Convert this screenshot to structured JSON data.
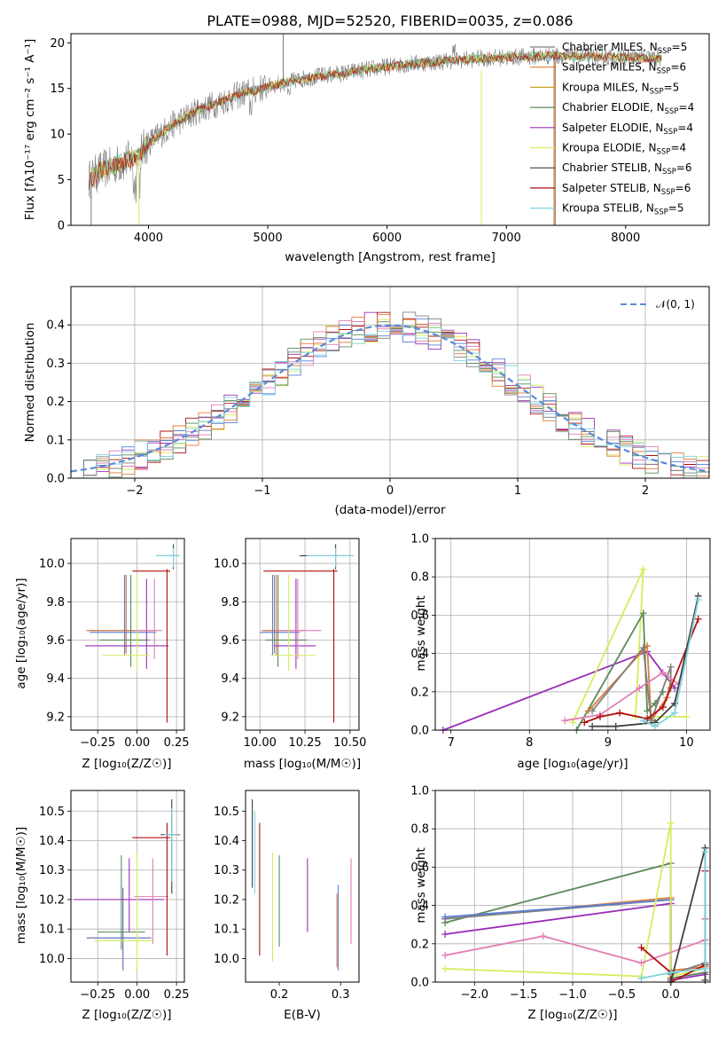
{
  "colors": {
    "chabrier_miles": "#808080",
    "salpeter_miles": "#e07b39",
    "kroupa_miles": "#c9a227",
    "chabrier_elodie": "#5b8a5b",
    "salpeter_elodie": "#9b30b8",
    "kroupa_elodie": "#d6ec5a",
    "chabrier_stelib": "#404040",
    "salpeter_stelib": "#b01010",
    "kroupa_stelib": "#7fd3de",
    "pink": "#e27fb4",
    "blue": "#5a7fd6",
    "normal": "#5b8ad6",
    "grid": "#b0b0b0"
  },
  "chart_data": [
    {
      "id": "spectrum",
      "type": "line",
      "title": "PLATE=0988, MJD=52520, FIBERID=0035, z=0.086",
      "xlabel": "wavelength [Angstrom, rest frame]",
      "ylabel": "Flux [fλ10⁻¹⁷ erg cm⁻² s⁻¹ A⁻¹]",
      "xlim": [
        3350,
        8700
      ],
      "ylim": [
        0,
        21
      ],
      "xticks": [
        "4000",
        "5000",
        "6000",
        "7000",
        "8000"
      ],
      "yticks": [
        "0",
        "5",
        "10",
        "15",
        "20"
      ],
      "grid": false,
      "legend_position": "upper-right",
      "legend": [
        {
          "label": "Chabrier MILES, N",
          "sub": "SSP",
          "tail": "=5"
        },
        {
          "label": "Salpeter MILES, N",
          "sub": "SSP",
          "tail": "=6"
        },
        {
          "label": "Kroupa MILES, N",
          "sub": "SSP",
          "tail": "=5"
        },
        {
          "label": "Chabrier ELODIE, N",
          "sub": "SSP",
          "tail": "=4"
        },
        {
          "label": "Salpeter ELODIE, N",
          "sub": "SSP",
          "tail": "=4"
        },
        {
          "label": "Kroupa ELODIE, N",
          "sub": "SSP",
          "tail": "=4"
        },
        {
          "label": "Chabrier STELIB, N",
          "sub": "SSP",
          "tail": "=6"
        },
        {
          "label": "Salpeter STELIB, N",
          "sub": "SSP",
          "tail": "=6"
        },
        {
          "label": "Kroupa STELIB, N",
          "sub": "SSP",
          "tail": "=5"
        }
      ],
      "continuum": {
        "x": [
          3500,
          3600,
          3700,
          3800,
          3900,
          4000,
          4200,
          4400,
          4600,
          4800,
          5000,
          5200,
          5400,
          5600,
          5800,
          6000,
          6200,
          6400,
          6600,
          6800,
          7000,
          7200,
          7400,
          7600,
          7800,
          8000,
          8200,
          8300
        ],
        "y": [
          5.0,
          6.0,
          6.5,
          7.0,
          7.5,
          9.0,
          11.0,
          12.5,
          13.5,
          14.5,
          15.2,
          15.8,
          16.3,
          16.6,
          17.0,
          17.4,
          17.7,
          17.9,
          18.1,
          18.3,
          18.4,
          18.5,
          18.6,
          18.5,
          18.5,
          18.4,
          18.3,
          18.3
        ]
      }
    },
    {
      "id": "residuals",
      "type": "bar",
      "xlabel": "(data-model)/error",
      "ylabel": "Normed distribution",
      "xlim": [
        -2.5,
        2.5
      ],
      "ylim": [
        0,
        0.5
      ],
      "xticks": [
        "−2",
        "−1",
        "0",
        "1",
        "2"
      ],
      "yticks": [
        "0.0",
        "0.1",
        "0.2",
        "0.3",
        "0.4"
      ],
      "grid": true,
      "legend": "𝒩(0, 1)",
      "legend_position": "upper-right",
      "bin_edges_start": -2.5,
      "bin_width": 0.1
    },
    {
      "id": "age_vs_Z",
      "type": "scatter",
      "xlabel": "Z [log₁₀(Z/Z☉)]",
      "ylabel": "age  [log₁₀(age/yr)]",
      "xlim": [
        -0.42,
        0.3
      ],
      "ylim": [
        9.13,
        10.13
      ],
      "xticks": [
        "−0.25",
        "0.00",
        "0.25"
      ],
      "xtick_values": [
        -0.25,
        0.0,
        0.25
      ],
      "yticks": [
        "9.2",
        "9.4",
        "9.6",
        "9.8",
        "10.0"
      ],
      "ytick_values": [
        9.2,
        9.4,
        9.6,
        9.8,
        10.0
      ],
      "grid": true,
      "points": [
        {
          "x": -0.07,
          "xlo": -0.32,
          "xhi": 0.12,
          "y": 9.65,
          "ylo": 9.53,
          "yhi": 9.94,
          "c": "chabrier_miles"
        },
        {
          "x": -0.07,
          "xlo": -0.32,
          "xhi": 0.12,
          "y": 9.65,
          "ylo": 9.53,
          "yhi": 9.94,
          "c": "salpeter_miles"
        },
        {
          "x": -0.08,
          "xlo": -0.3,
          "xhi": 0.12,
          "y": 9.64,
          "ylo": 9.52,
          "yhi": 9.94,
          "c": "blue"
        },
        {
          "x": -0.04,
          "xlo": -0.24,
          "xhi": 0.08,
          "y": 9.6,
          "ylo": 9.46,
          "yhi": 9.94,
          "c": "chabrier_elodie"
        },
        {
          "x": 0.06,
          "xlo": -0.33,
          "xhi": 0.2,
          "y": 9.57,
          "ylo": 9.45,
          "yhi": 9.92,
          "c": "salpeter_elodie"
        },
        {
          "x": 0.0,
          "xlo": -0.22,
          "xhi": 0.08,
          "y": 9.52,
          "ylo": 9.44,
          "yhi": 9.94,
          "c": "kroupa_elodie"
        },
        {
          "x": 0.11,
          "xlo": -0.02,
          "xhi": 0.16,
          "y": 9.65,
          "ylo": 9.5,
          "yhi": 9.92,
          "c": "pink"
        },
        {
          "x": 0.19,
          "xlo": -0.03,
          "xhi": 0.21,
          "y": 9.96,
          "ylo": 9.17,
          "yhi": 9.97,
          "c": "salpeter_stelib"
        },
        {
          "x": 0.23,
          "xlo": 0.12,
          "xhi": 0.27,
          "y": 10.04,
          "ylo": 9.97,
          "yhi": 10.1,
          "c": "chabrier_stelib"
        },
        {
          "x": 0.23,
          "xlo": 0.12,
          "xhi": 0.27,
          "y": 10.04,
          "ylo": 9.98,
          "yhi": 10.08,
          "c": "kroupa_stelib"
        }
      ]
    },
    {
      "id": "age_vs_mass",
      "type": "scatter",
      "xlabel": "mass [log₁₀(M/M☉)]",
      "ylabel": "",
      "xlim": [
        9.92,
        10.55
      ],
      "ylim": [
        9.13,
        10.13
      ],
      "xticks": [
        "10.00",
        "10.25",
        "10.50"
      ],
      "xtick_values": [
        10.0,
        10.25,
        10.5
      ],
      "yticks": [
        "9.2",
        "9.4",
        "9.6",
        "9.8",
        "10.0"
      ],
      "ytick_values": [
        9.2,
        9.4,
        9.6,
        9.8,
        10.0
      ],
      "grid": true,
      "points": [
        {
          "x": 10.08,
          "xlo": 10.02,
          "xhi": 10.25,
          "y": 9.65,
          "ylo": 9.53,
          "yhi": 9.94,
          "c": "chabrier_miles"
        },
        {
          "x": 10.09,
          "xlo": 10.01,
          "xhi": 10.24,
          "y": 9.65,
          "ylo": 9.52,
          "yhi": 9.94,
          "c": "salpeter_miles"
        },
        {
          "x": 10.07,
          "xlo": 10.0,
          "xhi": 10.22,
          "y": 9.64,
          "ylo": 9.52,
          "yhi": 9.94,
          "c": "blue"
        },
        {
          "x": 10.1,
          "xlo": 10.03,
          "xhi": 10.26,
          "y": 9.6,
          "ylo": 9.46,
          "yhi": 9.94,
          "c": "chabrier_elodie"
        },
        {
          "x": 10.2,
          "xlo": 10.08,
          "xhi": 10.31,
          "y": 9.57,
          "ylo": 9.45,
          "yhi": 9.92,
          "c": "salpeter_elodie"
        },
        {
          "x": 10.16,
          "xlo": 10.06,
          "xhi": 10.31,
          "y": 9.52,
          "ylo": 9.44,
          "yhi": 9.94,
          "c": "kroupa_elodie"
        },
        {
          "x": 10.21,
          "xlo": 10.09,
          "xhi": 10.34,
          "y": 9.65,
          "ylo": 9.5,
          "yhi": 9.92,
          "c": "pink"
        },
        {
          "x": 10.41,
          "xlo": 10.02,
          "xhi": 10.43,
          "y": 9.96,
          "ylo": 9.17,
          "yhi": 9.97,
          "c": "salpeter_stelib"
        },
        {
          "x": 10.42,
          "xlo": 10.22,
          "xhi": 10.52,
          "y": 10.04,
          "ylo": 9.97,
          "yhi": 10.1,
          "c": "chabrier_stelib"
        },
        {
          "x": 10.42,
          "xlo": 10.26,
          "xhi": 10.52,
          "y": 10.04,
          "ylo": 9.98,
          "yhi": 10.08,
          "c": "kroupa_stelib"
        }
      ]
    },
    {
      "id": "weight_vs_age",
      "type": "line",
      "xlabel": "age  [log₁₀(age/yr)]",
      "ylabel": "mass weight",
      "xlim": [
        6.8,
        10.3
      ],
      "ylim": [
        0,
        1.0
      ],
      "xticks": [
        "7",
        "8",
        "9",
        "10"
      ],
      "xtick_values": [
        7,
        8,
        9,
        10
      ],
      "yticks": [
        "0.0",
        "0.2",
        "0.4",
        "0.6",
        "0.8",
        "1.0"
      ],
      "ytick_values": [
        0,
        0.2,
        0.4,
        0.6,
        0.8,
        1.0
      ],
      "grid": true,
      "series": [
        {
          "c": "salpeter_elodie",
          "x": [
            6.9,
            9.5,
            9.7,
            9.85
          ],
          "y": [
            0.0,
            0.41,
            0.3,
            0.22
          ]
        },
        {
          "c": "kroupa_elodie",
          "x": [
            8.55,
            9.45,
            9.35,
            9.55,
            9.55,
            10.0
          ],
          "y": [
            0.04,
            0.84,
            0.07,
            0.06,
            0.07,
            0.07
          ]
        },
        {
          "c": "chabrier_elodie",
          "x": [
            8.6,
            9.45,
            9.5,
            9.6,
            9.7
          ],
          "y": [
            0.0,
            0.61,
            0.1,
            0.14,
            0.2
          ]
        },
        {
          "c": "salpeter_miles",
          "x": [
            8.75,
            9.5,
            9.55,
            9.75,
            9.8
          ],
          "y": [
            0.1,
            0.44,
            0.05,
            0.17,
            0.26
          ]
        },
        {
          "c": "chabrier_miles",
          "x": [
            8.8,
            9.45,
            9.55,
            9.8,
            9.8
          ],
          "y": [
            0.1,
            0.43,
            0.05,
            0.33,
            0.22
          ]
        },
        {
          "c": "pink",
          "x": [
            8.45,
            8.9,
            9.4,
            9.7,
            9.9
          ],
          "y": [
            0.05,
            0.08,
            0.22,
            0.3,
            0.24
          ]
        },
        {
          "c": "salpeter_stelib",
          "x": [
            8.7,
            8.9,
            9.15,
            9.5,
            9.7,
            10.15
          ],
          "y": [
            0.04,
            0.07,
            0.09,
            0.06,
            0.12,
            0.58
          ]
        },
        {
          "c": "chabrier_stelib",
          "x": [
            8.8,
            9.1,
            9.6,
            9.85,
            10.15
          ],
          "y": [
            0.02,
            0.02,
            0.04,
            0.14,
            0.7
          ]
        },
        {
          "c": "kroupa_stelib",
          "x": [
            9.45,
            9.6,
            9.85,
            10.15
          ],
          "y": [
            0.05,
            0.02,
            0.09,
            0.68
          ]
        }
      ]
    },
    {
      "id": "mass_vs_Z",
      "type": "scatter",
      "xlabel": "Z [log₁₀(Z/Z☉)]",
      "ylabel": "mass [log₁₀(M/M☉)]",
      "xlim": [
        -0.42,
        0.3
      ],
      "ylim": [
        9.92,
        10.57
      ],
      "xticks": [
        "−0.25",
        "0.00",
        "0.25"
      ],
      "xtick_values": [
        -0.25,
        0.0,
        0.25
      ],
      "yticks": [
        "10.0",
        "10.1",
        "10.2",
        "10.3",
        "10.4",
        "10.5"
      ],
      "ytick_values": [
        10.0,
        10.1,
        10.2,
        10.3,
        10.4,
        10.5
      ],
      "grid": true,
      "points": [
        {
          "x": -0.09,
          "xlo": -0.32,
          "xhi": 0.09,
          "y": 10.07,
          "ylo": 9.96,
          "yhi": 10.24,
          "c": "salpeter_miles"
        },
        {
          "x": -0.09,
          "xlo": -0.32,
          "xhi": 0.09,
          "y": 10.07,
          "ylo": 9.96,
          "yhi": 10.24,
          "c": "blue"
        },
        {
          "x": -0.1,
          "xlo": -0.25,
          "xhi": 0.05,
          "y": 10.09,
          "ylo": 10.03,
          "yhi": 10.35,
          "c": "chabrier_elodie"
        },
        {
          "x": -0.05,
          "xlo": -0.4,
          "xhi": 0.17,
          "y": 10.2,
          "ylo": 10.09,
          "yhi": 10.34,
          "c": "salpeter_elodie"
        },
        {
          "x": 0.0,
          "xlo": -0.27,
          "xhi": 0.1,
          "y": 10.06,
          "ylo": 9.96,
          "yhi": 10.36,
          "c": "kroupa_elodie"
        },
        {
          "x": 0.1,
          "xlo": -0.02,
          "xhi": 0.2,
          "y": 10.21,
          "ylo": 10.05,
          "yhi": 10.34,
          "c": "pink"
        },
        {
          "x": 0.19,
          "xlo": -0.03,
          "xhi": 0.21,
          "y": 10.41,
          "ylo": 10.01,
          "yhi": 10.46,
          "c": "salpeter_stelib"
        },
        {
          "x": 0.22,
          "xlo": 0.15,
          "xhi": 0.27,
          "y": 10.42,
          "ylo": 10.22,
          "yhi": 10.54,
          "c": "chabrier_stelib"
        },
        {
          "x": 0.22,
          "xlo": 0.17,
          "xhi": 0.26,
          "y": 10.42,
          "ylo": 10.26,
          "yhi": 10.51,
          "c": "kroupa_stelib"
        }
      ]
    },
    {
      "id": "mass_vs_ebv",
      "type": "scatter",
      "xlabel": "E(B-V)",
      "ylabel": "",
      "xlim": [
        0.145,
        0.33
      ],
      "ylim": [
        9.92,
        10.57
      ],
      "xticks": [
        "0.2",
        "0.3"
      ],
      "xtick_values": [
        0.2,
        0.3
      ],
      "yticks": [
        "10.0",
        "10.1",
        "10.2",
        "10.3",
        "10.4",
        "10.5"
      ],
      "ytick_values": [
        10.0,
        10.1,
        10.2,
        10.3,
        10.4,
        10.5
      ],
      "grid": false,
      "points": [
        {
          "x": 0.156,
          "y": 10.38,
          "ylo": 10.24,
          "yhi": 10.54,
          "c": "chabrier_stelib"
        },
        {
          "x": 0.16,
          "y": 10.36,
          "ylo": 10.22,
          "yhi": 10.5,
          "c": "kroupa_stelib"
        },
        {
          "x": 0.168,
          "y": 10.24,
          "ylo": 10.01,
          "yhi": 10.46,
          "c": "salpeter_stelib"
        },
        {
          "x": 0.189,
          "y": 10.18,
          "ylo": 9.99,
          "yhi": 10.36,
          "c": "kroupa_elodie"
        },
        {
          "x": 0.2,
          "y": 10.2,
          "ylo": 10.04,
          "yhi": 10.35,
          "c": "chabrier_elodie"
        },
        {
          "x": 0.246,
          "y": 10.21,
          "ylo": 10.09,
          "yhi": 10.34,
          "c": "salpeter_elodie"
        },
        {
          "x": 0.294,
          "y": 10.09,
          "ylo": 9.97,
          "yhi": 10.22,
          "c": "salpeter_miles"
        },
        {
          "x": 0.296,
          "y": 10.1,
          "ylo": 9.96,
          "yhi": 10.25,
          "c": "blue"
        },
        {
          "x": 0.317,
          "y": 10.2,
          "ylo": 10.05,
          "yhi": 10.34,
          "c": "pink"
        }
      ]
    },
    {
      "id": "weight_vs_Z",
      "type": "line",
      "xlabel": "Z [log₁₀(Z/Z☉)]",
      "ylabel": "mass weight",
      "xlim": [
        -2.4,
        0.4
      ],
      "ylim": [
        0,
        1.0
      ],
      "xticks": [
        "−2.0",
        "−1.5",
        "−1.0",
        "−0.5",
        "0.0"
      ],
      "xtick_values": [
        -2.0,
        -1.5,
        -1.0,
        -0.5,
        0.0
      ],
      "yticks": [
        "0.0",
        "0.2",
        "0.4",
        "0.6",
        "0.8",
        "1.0"
      ],
      "ytick_values": [
        0,
        0.2,
        0.4,
        0.6,
        0.8,
        1.0
      ],
      "grid": true,
      "series": [
        {
          "c": "chabrier_elodie",
          "x": [
            -2.3,
            0.0,
            0.0,
            0.35
          ],
          "y": [
            0.31,
            0.62,
            0.02,
            0.05
          ]
        },
        {
          "c": "salpeter_miles",
          "x": [
            -2.3,
            0.0,
            0.0,
            0.35
          ],
          "y": [
            0.33,
            0.44,
            0.06,
            0.08
          ]
        },
        {
          "c": "chabrier_miles",
          "x": [
            -2.3,
            0.0,
            0.0,
            0.35
          ],
          "y": [
            0.33,
            0.43,
            0.04,
            0.1
          ]
        },
        {
          "c": "blue",
          "x": [
            -2.3,
            0.0
          ],
          "y": [
            0.34,
            0.43
          ]
        },
        {
          "c": "salpeter_elodie",
          "x": [
            -2.3,
            0.0,
            0.0,
            0.35,
            0.35
          ],
          "y": [
            0.25,
            0.41,
            0.01,
            0.04,
            0.33
          ]
        },
        {
          "c": "kroupa_elodie",
          "x": [
            -2.3,
            -0.3,
            0.0,
            0.0,
            0.35
          ],
          "y": [
            0.07,
            0.03,
            0.83,
            0.03,
            0.07
          ]
        },
        {
          "c": "pink",
          "x": [
            -2.3,
            -1.3,
            -0.3,
            0.35,
            0.35
          ],
          "y": [
            0.14,
            0.24,
            0.1,
            0.22,
            0.33
          ]
        },
        {
          "c": "salpeter_stelib",
          "x": [
            -0.3,
            0.0,
            0.0,
            0.35,
            0.35
          ],
          "y": [
            0.18,
            0.05,
            0.0,
            0.09,
            0.58
          ]
        },
        {
          "c": "chabrier_stelib",
          "x": [
            0.0,
            0.35,
            0.35
          ],
          "y": [
            0.0,
            0.7,
            0.01
          ]
        },
        {
          "c": "kroupa_stelib",
          "x": [
            -0.3,
            0.0,
            0.35,
            0.35
          ],
          "y": [
            0.02,
            0.05,
            0.07,
            0.68
          ]
        }
      ]
    }
  ]
}
